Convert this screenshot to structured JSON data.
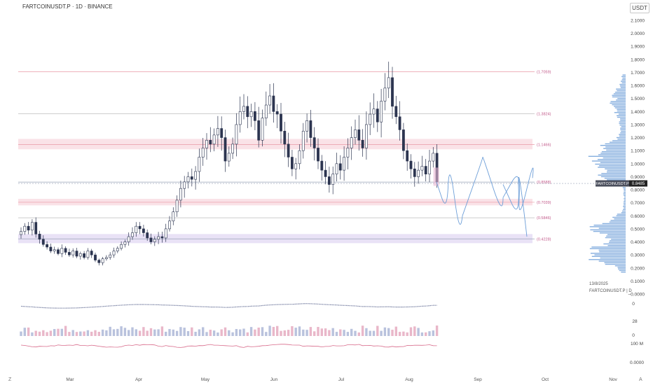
{
  "header": {
    "title": "FARTCOINUSDT.P · 1D · BINANCE",
    "currency": "USDT"
  },
  "footer": {
    "date": "13/8/2025",
    "symbol_line": "FARTCOINUSDT.P | D"
  },
  "corners": {
    "left": "Z",
    "right": "A"
  },
  "colors": {
    "candle_up": "#ffffff",
    "candle_down": "#2c3550",
    "level_red": "#e899a6",
    "zone_pink": "#f9dbe1",
    "zone_purple": "#e4dbf4",
    "price_line": "#9aa4b8",
    "projection": "#6e9fd8",
    "volume_profile": "#6e9fd8",
    "price_badge": "#4a4e5c"
  },
  "chart_data": {
    "type": "candlestick",
    "title": "FARTCOINUSDT.P · 1D · BINANCE",
    "y_axis": {
      "ticks": [
        "2.1000",
        "2.0000",
        "1.9000",
        "1.8000",
        "1.7000",
        "1.6000",
        "1.5000",
        "1.4000",
        "1.3000",
        "1.2000",
        "1.1000",
        "1.0000",
        "0.9000",
        "0.8000",
        "0.7000",
        "0.6000",
        "0.5000",
        "0.4000",
        "0.3000",
        "0.2000",
        "0.1000",
        "−0.0000"
      ],
      "ylim": [
        -0.02,
        2.14
      ]
    },
    "x_axis": {
      "ticks": [
        "Mar",
        "Apr",
        "May",
        "Jun",
        "Jul",
        "Aug",
        "Sep",
        "Oct",
        "Nov"
      ]
    },
    "last_price": {
      "label": "FARTCOINUSDT.P",
      "value": 0.8485,
      "text": "0.8485"
    },
    "fib_levels": [
      {
        "label": "(1.7059)",
        "value": 1.7059,
        "color": "#e899a6"
      },
      {
        "label": "(1.3824)",
        "value": 1.3824,
        "color": "#bdbdbd"
      },
      {
        "label": "(1.1466)",
        "value": 1.1466,
        "color": "#e899a6"
      },
      {
        "label": "(0.8588)",
        "value": 0.8588,
        "color": "#9aa4b8"
      },
      {
        "label": "(0.7039)",
        "value": 0.7039,
        "color": "#e899a6"
      },
      {
        "label": "(0.5846)",
        "value": 0.5846,
        "color": "#bdbdbd"
      },
      {
        "label": "(0.4228)",
        "value": 0.4228,
        "color": "#9aa4b8"
      }
    ],
    "zones": [
      {
        "from": 1.11,
        "to": 1.19,
        "color": "#f9dbe1"
      },
      {
        "from": 0.68,
        "to": 0.73,
        "color": "#f9dbe1"
      },
      {
        "from": 0.39,
        "to": 0.46,
        "color": "#e4dbf4"
      }
    ],
    "closes": [
      0.48,
      0.52,
      0.49,
      0.55,
      0.46,
      0.42,
      0.38,
      0.36,
      0.33,
      0.34,
      0.31,
      0.35,
      0.32,
      0.3,
      0.33,
      0.29,
      0.31,
      0.28,
      0.33,
      0.3,
      0.26,
      0.24,
      0.27,
      0.28,
      0.3,
      0.33,
      0.35,
      0.38,
      0.4,
      0.44,
      0.47,
      0.52,
      0.5,
      0.47,
      0.43,
      0.4,
      0.42,
      0.44,
      0.43,
      0.5,
      0.56,
      0.63,
      0.72,
      0.81,
      0.86,
      0.9,
      0.88,
      0.94,
      1.05,
      1.12,
      1.18,
      1.15,
      1.22,
      1.27,
      1.2,
      1.02,
      1.08,
      1.15,
      1.3,
      1.4,
      1.44,
      1.36,
      1.4,
      1.33,
      1.18,
      1.35,
      1.45,
      1.52,
      1.4,
      1.38,
      1.25,
      1.15,
      1.05,
      0.96,
      1.0,
      1.1,
      1.25,
      1.33,
      1.2,
      1.12,
      1.02,
      0.95,
      0.9,
      0.84,
      0.92,
      1.0,
      0.95,
      1.05,
      1.12,
      1.2,
      1.26,
      1.18,
      1.12,
      1.3,
      1.38,
      1.42,
      1.32,
      1.48,
      1.58,
      1.66,
      1.44,
      1.36,
      1.26,
      1.1,
      1.02,
      0.96,
      0.9,
      0.95,
      0.98,
      0.92,
      1.02,
      1.08,
      0.86
    ],
    "projections": [
      [
        [
          0.0,
          0.86
        ],
        [
          0.2,
          0.74
        ],
        [
          0.45,
          0.83
        ],
        [
          0.7,
          0.73
        ],
        [
          1.0,
          0.6
        ]
      ],
      [
        [
          0.0,
          0.6
        ],
        [
          0.25,
          0.82
        ],
        [
          0.5,
          1.05
        ],
        [
          0.75,
          0.82
        ],
        [
          1.0,
          0.74
        ]
      ],
      [
        [
          0.0,
          0.74
        ],
        [
          0.3,
          0.86
        ],
        [
          0.55,
          0.75
        ],
        [
          0.8,
          0.8
        ],
        [
          1.0,
          0.89
        ]
      ],
      [
        [
          0.0,
          0.84
        ],
        [
          0.35,
          0.7
        ],
        [
          0.65,
          0.82
        ],
        [
          1.0,
          0.44
        ]
      ]
    ],
    "indicator_labels": {
      "rsi_axis": "0",
      "volume_axis": [
        "28",
        "0"
      ],
      "osc_axis": [
        "100 M",
        "0.0000"
      ]
    }
  }
}
